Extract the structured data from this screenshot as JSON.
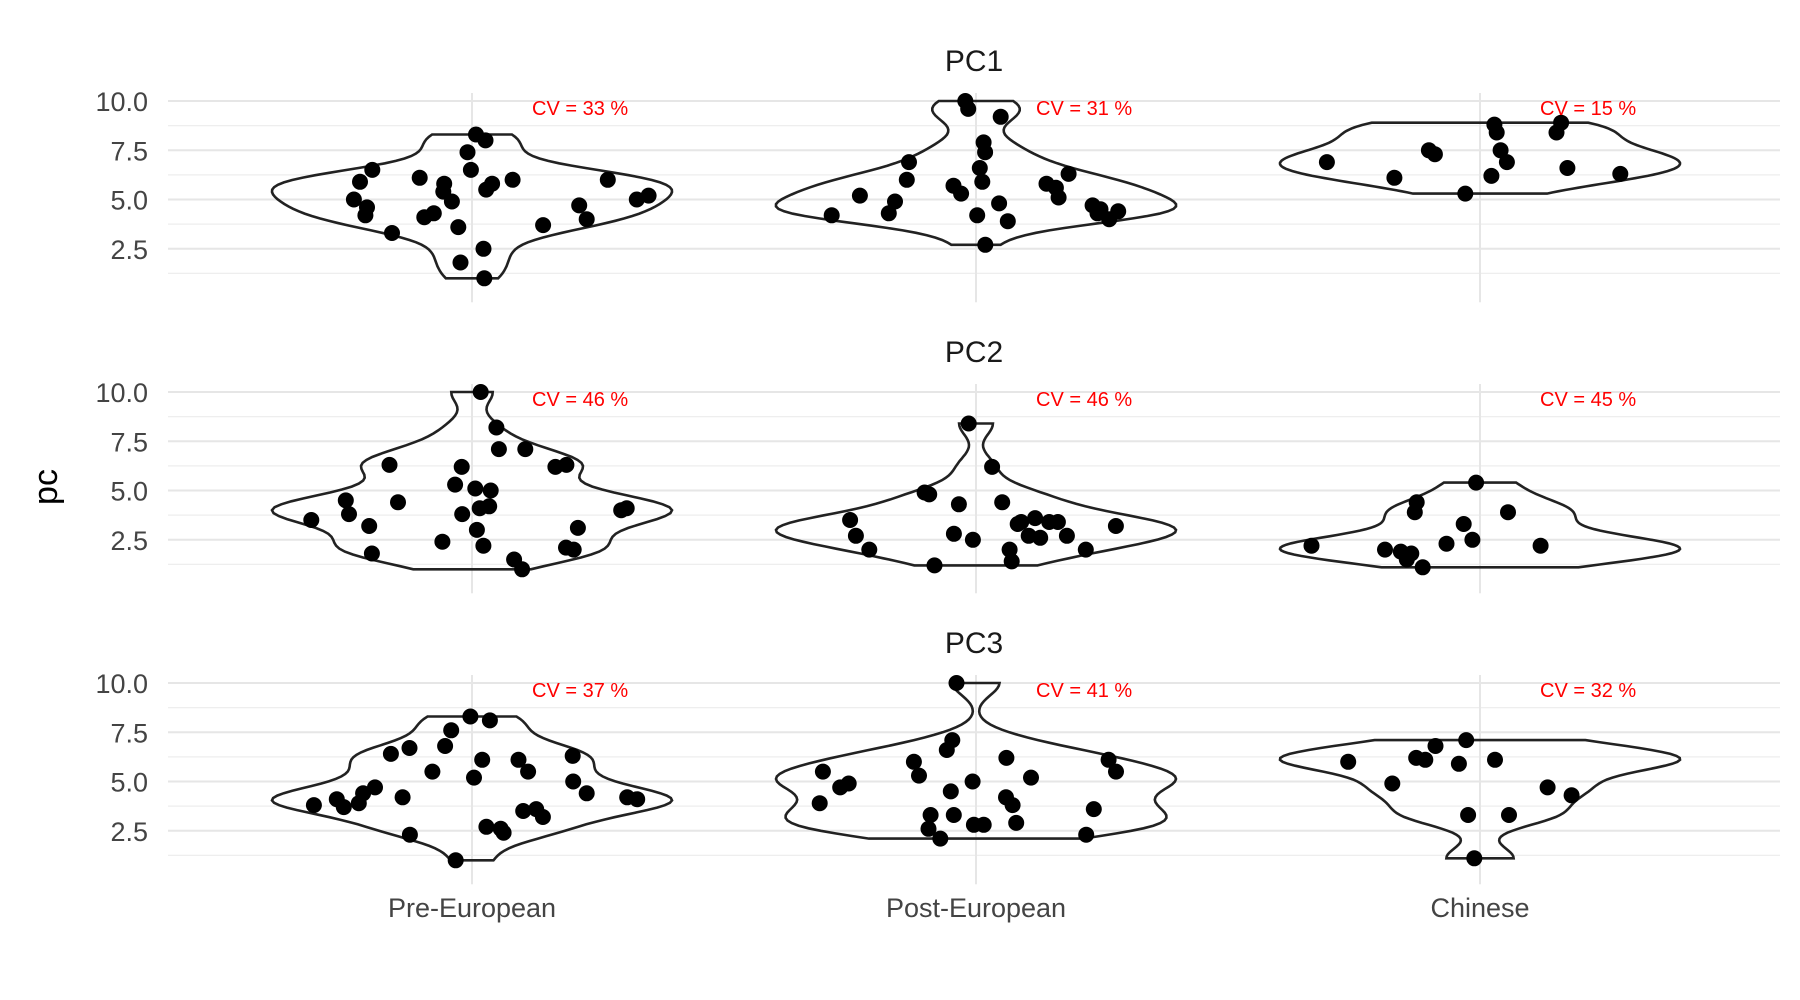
{
  "chart_data": {
    "type": "violin",
    "ylabel": "pc",
    "categories": [
      "Pre-European",
      "Post-European",
      "Chinese"
    ],
    "y_ticks": [
      "2.5",
      "5.0",
      "7.5",
      "10.0"
    ],
    "y_range": [
      1.0,
      10.0
    ],
    "panels": [
      {
        "title": "PC1",
        "groups": [
          {
            "category": "Pre-European",
            "cv_label": "CV =  33 %",
            "values": [
              6.0,
              6.5,
              5.8,
              4.3,
              7.4,
              6.0,
              5.9,
              6.1,
              5.5,
              5.0,
              4.7,
              4.6,
              5.2,
              3.7,
              4.9,
              4.0,
              3.6,
              2.5,
              1.8,
              1.0,
              8.3,
              8.0,
              5.8,
              4.2,
              4.1,
              6.5,
              3.3,
              5.0,
              5.4
            ]
          },
          {
            "category": "Post-European",
            "cv_label": "CV =  31 %",
            "values": [
              5.1,
              4.8,
              5.3,
              4.9,
              4.7,
              5.8,
              4.2,
              5.9,
              6.6,
              6.9,
              7.4,
              7.9,
              9.6,
              9.2,
              10.0,
              5.7,
              4.3,
              4.0,
              2.7,
              4.3,
              4.5,
              4.2,
              3.9,
              6.3,
              6.0,
              5.6,
              5.2,
              4.4
            ]
          },
          {
            "category": "Chinese",
            "cv_label": "CV =  15 %",
            "values": [
              6.9,
              7.3,
              7.5,
              6.3,
              6.2,
              8.8,
              7.5,
              6.9,
              8.4,
              5.3,
              8.9,
              8.4,
              6.1,
              6.6
            ]
          }
        ]
      },
      {
        "title": "PC2",
        "groups": [
          {
            "category": "Pre-European",
            "cv_label": "CV =  46 %",
            "values": [
              10.0,
              8.2,
              7.1,
              6.3,
              6.2,
              3.5,
              4.5,
              2.4,
              5.3,
              4.4,
              4.0,
              4.1,
              5.0,
              1.5,
              1.8,
              1.0,
              3.2,
              4.1,
              3.8,
              2.1,
              2.2,
              7.1,
              6.2,
              3.1,
              3.0,
              6.3,
              3.8,
              4.2,
              5.1,
              2.0
            ]
          },
          {
            "category": "Post-European",
            "cv_label": "CV =  46 %",
            "values": [
              2.8,
              2.0,
              2.0,
              2.7,
              2.6,
              2.7,
              3.4,
              4.4,
              4.8,
              6.2,
              8.4,
              3.5,
              1.4,
              1.2,
              3.4,
              3.3,
              4.9,
              3.6,
              3.2,
              3.4,
              4.3,
              2.5,
              2.7,
              2.0
            ]
          },
          {
            "category": "Chinese",
            "cv_label": "CV =  45 %",
            "values": [
              2.0,
              2.2,
              1.8,
              2.3,
              3.3,
              4.4,
              3.9,
              5.4,
              1.1,
              3.9,
              2.5,
              1.5,
              1.9,
              2.2
            ]
          }
        ]
      },
      {
        "title": "PC3",
        "groups": [
          {
            "category": "Pre-European",
            "cv_label": "CV =  37 %",
            "values": [
              3.7,
              2.6,
              2.7,
              3.5,
              3.2,
              5.0,
              5.5,
              6.3,
              7.6,
              6.4,
              4.2,
              2.4,
              2.3,
              6.8,
              4.1,
              6.1,
              4.2,
              8.3,
              8.1,
              1.0,
              3.8,
              4.4,
              6.7,
              5.2,
              6.1,
              5.5,
              4.4,
              4.1,
              4.7,
              3.9,
              3.6
            ]
          },
          {
            "category": "Post-European",
            "cv_label": "CV =  41 %",
            "values": [
              5.0,
              5.5,
              3.6,
              4.7,
              6.0,
              6.1,
              2.8,
              2.8,
              7.1,
              3.3,
              2.9,
              2.6,
              2.3,
              10.0,
              6.6,
              5.3,
              5.5,
              3.3,
              2.1,
              3.9,
              3.8,
              6.2,
              4.5,
              5.2,
              4.9,
              4.2
            ]
          },
          {
            "category": "Chinese",
            "cv_label": "CV =  32 %",
            "values": [
              6.8,
              6.1,
              7.1,
              5.9,
              4.3,
              3.3,
              3.3,
              1.1,
              4.9,
              6.0,
              4.7,
              6.1,
              6.2
            ]
          }
        ]
      }
    ]
  }
}
